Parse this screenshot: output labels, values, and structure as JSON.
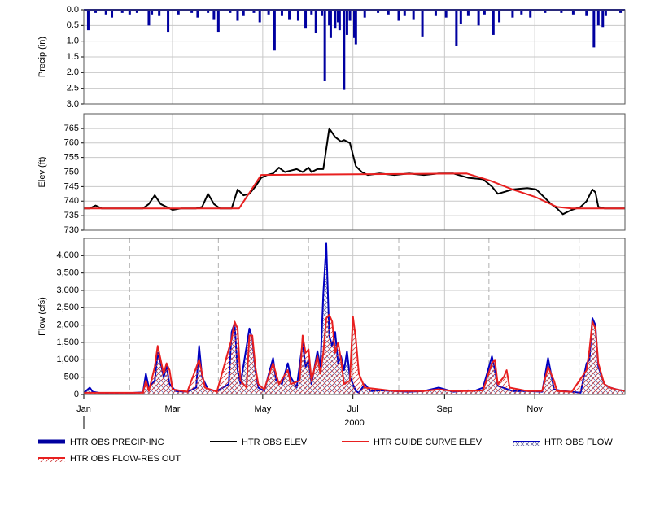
{
  "chart_data": [
    {
      "type": "bar",
      "ylabel": "Precip (in)",
      "inverted": true,
      "xlim": [
        0,
        366
      ],
      "xgrid": [
        60,
        121,
        182,
        244,
        305
      ],
      "ylim": [
        0,
        3
      ],
      "yticks": [
        {
          "value": 0,
          "label": "0.0"
        },
        {
          "value": 0.5,
          "label": "0.5"
        },
        {
          "value": 1,
          "label": "1.0"
        },
        {
          "value": 1.5,
          "label": "1.5"
        },
        {
          "value": 2,
          "label": "2.0"
        },
        {
          "value": 2.5,
          "label": "2.5"
        },
        {
          "value": 3,
          "label": "3.0"
        }
      ],
      "x": [
        3,
        8,
        15,
        19,
        26,
        31,
        36,
        44,
        46,
        51,
        57,
        64,
        73,
        77,
        84,
        88,
        91,
        99,
        104,
        108,
        115,
        119,
        125,
        129,
        134,
        139,
        145,
        150,
        154,
        157,
        161,
        163,
        166,
        167,
        170,
        172,
        173,
        176,
        178,
        180,
        183,
        184,
        190,
        199,
        206,
        213,
        217,
        223,
        229,
        238,
        245,
        252,
        255,
        260,
        267,
        271,
        277,
        281,
        290,
        296,
        302,
        312,
        323,
        331,
        340,
        345,
        348,
        351,
        353,
        363
      ],
      "series": [
        {
          "name": "HTR OBS PRECIP-INC",
          "color": "#0000a0",
          "values": [
            0.65,
            0.1,
            0.15,
            0.25,
            0.1,
            0.15,
            0.1,
            0.5,
            0.15,
            0.2,
            0.7,
            0.15,
            0.1,
            0.25,
            0.1,
            0.3,
            0.7,
            0.1,
            0.35,
            0.2,
            0.1,
            0.4,
            0.15,
            1.3,
            0.2,
            0.3,
            0.35,
            0.6,
            0.15,
            0.75,
            0.2,
            2.25,
            0.5,
            0.9,
            0.6,
            0.4,
            0.65,
            2.55,
            0.8,
            0.35,
            0.9,
            1.1,
            0.25,
            0.1,
            0.15,
            0.35,
            0.2,
            0.3,
            0.85,
            0.2,
            0.25,
            1.15,
            0.45,
            0.2,
            0.5,
            0.15,
            0.8,
            0.4,
            0.25,
            0.15,
            0.25,
            0.1,
            0.1,
            0.15,
            0.2,
            1.2,
            0.5,
            0.55,
            0.2,
            0.1
          ]
        }
      ]
    },
    {
      "type": "line",
      "ylabel": "Elev (ft)",
      "xlim": [
        0,
        366
      ],
      "xgrid": [
        60,
        121,
        182,
        244,
        305
      ],
      "ylim": [
        730,
        770
      ],
      "yticks": [
        730,
        735,
        740,
        745,
        750,
        755,
        760,
        765
      ],
      "series": [
        {
          "name": "HTR OBS ELEV",
          "color": "#000000",
          "x": [
            0,
            4,
            8,
            12,
            40,
            44,
            48,
            52,
            56,
            60,
            66,
            70,
            76,
            80,
            84,
            88,
            92,
            100,
            104,
            108,
            112,
            116,
            120,
            124,
            128,
            132,
            136,
            140,
            144,
            148,
            152,
            154,
            158,
            162,
            164,
            166,
            170,
            174,
            176,
            180,
            184,
            188,
            192,
            200,
            210,
            220,
            230,
            240,
            250,
            260,
            270,
            276,
            280,
            290,
            300,
            306,
            310,
            316,
            320,
            324,
            330,
            336,
            340,
            344,
            346,
            348,
            352,
            360,
            366
          ],
          "values": [
            737.5,
            737.5,
            738.5,
            737.5,
            737.5,
            739,
            742,
            739,
            738,
            737,
            737.5,
            737.5,
            737.5,
            738,
            742.5,
            739,
            737.5,
            737.5,
            744,
            742,
            742.5,
            745,
            748,
            749,
            749.5,
            751.5,
            750,
            750.5,
            751,
            750,
            751.5,
            750,
            751,
            751,
            758,
            765,
            762,
            760.5,
            761,
            760,
            752,
            750,
            749,
            749.5,
            749,
            749.5,
            749,
            749.5,
            749.5,
            748,
            747.5,
            745,
            742.5,
            744,
            744.5,
            744,
            742,
            739,
            737.5,
            735.5,
            737,
            738,
            740,
            744,
            743,
            738,
            737.5,
            737.5,
            737.5
          ]
        },
        {
          "name": "HTR GUIDE CURVE ELEV",
          "color": "#e82020",
          "x": [
            0,
            105,
            120,
            259,
            275,
            290,
            305,
            320,
            330,
            366
          ],
          "values": [
            737.5,
            737.5,
            749,
            749.5,
            747,
            744,
            741.5,
            738,
            737.5,
            737.5
          ]
        }
      ]
    },
    {
      "type": "area",
      "ylabel": "Flow (cfs)",
      "xlabel": "2000",
      "xlim": [
        0,
        366
      ],
      "xticks": [
        {
          "value": 0,
          "label": "Jan"
        },
        {
          "value": 60,
          "label": "Mar"
        },
        {
          "value": 121,
          "label": "May"
        },
        {
          "value": 182,
          "label": "Jul"
        },
        {
          "value": 244,
          "label": "Sep"
        },
        {
          "value": 305,
          "label": "Nov"
        }
      ],
      "xminor": [
        31,
        91,
        152,
        213,
        274,
        335
      ],
      "ylim": [
        0,
        4500
      ],
      "yticks": [
        0,
        500,
        {
          "value": 1000,
          "label": "1,000"
        },
        {
          "value": 1500,
          "label": "1,500"
        },
        {
          "value": 2000,
          "label": "2,000"
        },
        {
          "value": 2500,
          "label": "2,500"
        },
        {
          "value": 3000,
          "label": "3,000"
        },
        {
          "value": 3500,
          "label": "3,500"
        },
        {
          "value": 4000,
          "label": "4,000"
        }
      ],
      "series": [
        {
          "name": "HTR OBS FLOW",
          "color": "#0000c0",
          "hatch": "cross",
          "x": [
            0,
            4,
            6,
            10,
            20,
            30,
            40,
            42,
            44,
            48,
            50,
            52,
            54,
            56,
            58,
            62,
            70,
            76,
            78,
            80,
            84,
            90,
            98,
            100,
            102,
            104,
            106,
            112,
            114,
            116,
            118,
            122,
            128,
            130,
            134,
            138,
            140,
            144,
            148,
            150,
            152,
            154,
            158,
            160,
            162,
            164,
            166,
            168,
            170,
            172,
            174,
            176,
            178,
            180,
            182,
            184,
            186,
            190,
            194,
            200,
            210,
            220,
            230,
            240,
            250,
            260,
            264,
            270,
            276,
            278,
            280,
            290,
            300,
            310,
            314,
            318,
            324,
            330,
            336,
            340,
            342,
            344,
            346,
            348,
            352,
            356,
            360,
            366
          ],
          "values": [
            50,
            200,
            80,
            50,
            40,
            40,
            60,
            600,
            200,
            400,
            1200,
            900,
            500,
            800,
            300,
            100,
            80,
            200,
            1400,
            500,
            150,
            100,
            300,
            1800,
            2050,
            700,
            300,
            1900,
            1600,
            700,
            200,
            100,
            1050,
            400,
            300,
            900,
            500,
            200,
            1500,
            800,
            1000,
            300,
            1250,
            800,
            2900,
            4350,
            1700,
            1400,
            1800,
            900,
            1100,
            700,
            1250,
            500,
            300,
            100,
            50,
            300,
            100,
            120,
            100,
            80,
            100,
            200,
            80,
            120,
            100,
            200,
            1100,
            700,
            250,
            100,
            100,
            80,
            1050,
            150,
            100,
            80,
            50,
            900,
            1000,
            2200,
            2000,
            800,
            300,
            200,
            150,
            100
          ]
        },
        {
          "name": "HTR OBS FLOW-RES OUT",
          "color": "#e82020",
          "hatch": "diag",
          "x": [
            0,
            40,
            42,
            44,
            48,
            50,
            52,
            54,
            56,
            58,
            60,
            70,
            78,
            80,
            82,
            90,
            100,
            102,
            104,
            106,
            110,
            112,
            114,
            116,
            118,
            122,
            128,
            130,
            132,
            138,
            140,
            146,
            148,
            150,
            152,
            154,
            158,
            160,
            162,
            164,
            166,
            168,
            170,
            172,
            174,
            176,
            180,
            182,
            184,
            186,
            190,
            200,
            210,
            220,
            230,
            240,
            250,
            260,
            270,
            276,
            278,
            280,
            284,
            286,
            288,
            300,
            310,
            314,
            318,
            320,
            330,
            340,
            342,
            344,
            346,
            348,
            352,
            356,
            360,
            366
          ],
          "values": [
            50,
            50,
            400,
            100,
            800,
            1400,
            1000,
            600,
            900,
            700,
            150,
            80,
            1000,
            600,
            200,
            80,
            1600,
            2100,
            1900,
            400,
            200,
            1700,
            1700,
            800,
            300,
            150,
            900,
            600,
            300,
            700,
            300,
            400,
            1700,
            1200,
            1300,
            400,
            1100,
            600,
            1200,
            2200,
            2300,
            2100,
            1200,
            1500,
            1000,
            300,
            400,
            2250,
            1600,
            600,
            200,
            150,
            100,
            100,
            100,
            150,
            100,
            100,
            120,
            900,
            1000,
            300,
            500,
            700,
            200,
            100,
            100,
            800,
            400,
            100,
            80,
            700,
            1300,
            2100,
            1900,
            900,
            300,
            200,
            150,
            100
          ]
        }
      ]
    }
  ]
}
